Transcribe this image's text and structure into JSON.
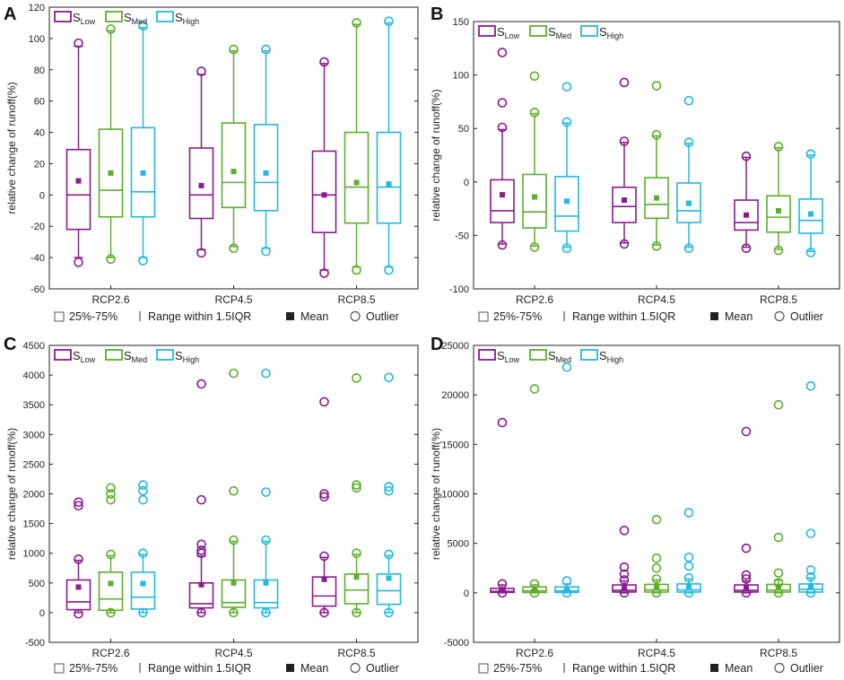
{
  "series_colors": {
    "low": "#8B1A8E",
    "med": "#5DAE2B",
    "high": "#22B9E2"
  },
  "legend": {
    "items": [
      {
        "key": "low",
        "base": "S",
        "sub": "Low"
      },
      {
        "key": "med",
        "base": "S",
        "sub": "Med"
      },
      {
        "key": "high",
        "base": "S",
        "sub": "High"
      }
    ]
  },
  "footer": {
    "box_label": "25%-75%",
    "range_label": "Range within 1.5IQR",
    "mean_label": "Mean",
    "outlier_label": "Outlier"
  },
  "chart_data": [
    {
      "panel": "A",
      "type": "box",
      "ylabel": "relative change of runoff(%)",
      "ylim": [
        -60,
        120
      ],
      "yticks": [
        -60,
        -40,
        -20,
        0,
        20,
        40,
        60,
        80,
        100,
        120
      ],
      "categories": [
        "RCP2.6",
        "RCP4.5",
        "RCP8.5"
      ],
      "series": [
        {
          "name": "S_Low",
          "key": "low",
          "boxes": [
            {
              "min": -40,
              "q1": -22,
              "median": 0,
              "q3": 29,
              "max": 95,
              "mean": 9,
              "outliers": [
                -43,
                97
              ]
            },
            {
              "min": -35,
              "q1": -15,
              "median": 0,
              "q3": 30,
              "max": 77,
              "mean": 6,
              "outliers": [
                -37,
                79
              ]
            },
            {
              "min": -48,
              "q1": -24,
              "median": 0,
              "q3": 28,
              "max": 84,
              "mean": 0,
              "outliers": [
                -50,
                85
              ]
            }
          ]
        },
        {
          "name": "S_Med",
          "key": "med",
          "boxes": [
            {
              "min": -40,
              "q1": -14,
              "median": 3,
              "q3": 42,
              "max": 105,
              "mean": 14,
              "outliers": [
                -41,
                106
              ]
            },
            {
              "min": -33,
              "q1": -8,
              "median": 8,
              "q3": 46,
              "max": 92,
              "mean": 15,
              "outliers": [
                -34,
                93
              ]
            },
            {
              "min": -46,
              "q1": -18,
              "median": 5,
              "q3": 40,
              "max": 109,
              "mean": 8,
              "outliers": [
                -48,
                110
              ]
            }
          ]
        },
        {
          "name": "S_High",
          "key": "high",
          "boxes": [
            {
              "min": -40,
              "q1": -14,
              "median": 2,
              "q3": 43,
              "max": 107,
              "mean": 14,
              "outliers": [
                -42,
                108
              ]
            },
            {
              "min": -34,
              "q1": -10,
              "median": 8,
              "q3": 45,
              "max": 92,
              "mean": 14,
              "outliers": [
                -36,
                93
              ]
            },
            {
              "min": -46,
              "q1": -18,
              "median": 5,
              "q3": 40,
              "max": 110,
              "mean": 7,
              "outliers": [
                -48,
                111
              ]
            }
          ]
        }
      ]
    },
    {
      "panel": "B",
      "type": "box",
      "ylabel": "relative change of runoff(%)",
      "ylim": [
        -100,
        150
      ],
      "yticks": [
        -100,
        -50,
        0,
        50,
        100,
        150
      ],
      "categories": [
        "RCP2.6",
        "RCP4.5",
        "RCP8.5"
      ],
      "series": [
        {
          "name": "S_Low",
          "key": "low",
          "boxes": [
            {
              "min": -58,
              "q1": -38,
              "median": -27,
              "q3": 2,
              "max": 49,
              "mean": -12,
              "outliers": [
                -59,
                51,
                74,
                121
              ]
            },
            {
              "min": -57,
              "q1": -38,
              "median": -23,
              "q3": -5,
              "max": 37,
              "mean": -17,
              "outliers": [
                -58,
                38,
                93
              ]
            },
            {
              "min": -61,
              "q1": -45,
              "median": -38,
              "q3": -17,
              "max": 23,
              "mean": -31,
              "outliers": [
                -62,
                24
              ]
            }
          ]
        },
        {
          "name": "S_Med",
          "key": "med",
          "boxes": [
            {
              "min": -60,
              "q1": -43,
              "median": -28,
              "q3": 7,
              "max": 64,
              "mean": -14,
              "outliers": [
                -61,
                65,
                99
              ]
            },
            {
              "min": -59,
              "q1": -34,
              "median": -21,
              "q3": 4,
              "max": 43,
              "mean": -15,
              "outliers": [
                -60,
                44,
                90
              ]
            },
            {
              "min": -63,
              "q1": -47,
              "median": -33,
              "q3": -13,
              "max": 32,
              "mean": -27,
              "outliers": [
                -64,
                33
              ]
            }
          ]
        },
        {
          "name": "S_High",
          "key": "high",
          "boxes": [
            {
              "min": -61,
              "q1": -46,
              "median": -32,
              "q3": 5,
              "max": 55,
              "mean": -18,
              "outliers": [
                -62,
                56,
                89
              ]
            },
            {
              "min": -61,
              "q1": -38,
              "median": -27,
              "q3": -1,
              "max": 36,
              "mean": -20,
              "outliers": [
                -62,
                37,
                76
              ]
            },
            {
              "min": -65,
              "q1": -48,
              "median": -36,
              "q3": -16,
              "max": 25,
              "mean": -30,
              "outliers": [
                -66,
                26
              ]
            }
          ]
        }
      ]
    },
    {
      "panel": "C",
      "type": "box",
      "ylabel": "relative change of runoff(%)",
      "ylim": [
        -500,
        4500
      ],
      "yticks": [
        -500,
        0,
        500,
        1000,
        1500,
        2000,
        2500,
        3000,
        3500,
        4000,
        4500
      ],
      "categories": [
        "RCP2.6",
        "RCP4.5",
        "RCP8.5"
      ],
      "series": [
        {
          "name": "S_Low",
          "key": "low",
          "boxes": [
            {
              "min": 0,
              "q1": 50,
              "median": 180,
              "q3": 550,
              "max": 880,
              "mean": 430,
              "outliers": [
                -20,
                900,
                1800,
                1860
              ]
            },
            {
              "min": 0,
              "q1": 80,
              "median": 150,
              "q3": 500,
              "max": 950,
              "mean": 470,
              "outliers": [
                0,
                1000,
                1050,
                1150,
                1900,
                3850
              ]
            },
            {
              "min": 0,
              "q1": 110,
              "median": 280,
              "q3": 600,
              "max": 930,
              "mean": 560,
              "outliers": [
                0,
                950,
                1950,
                2000,
                3550
              ]
            }
          ]
        },
        {
          "name": "S_Med",
          "key": "med",
          "boxes": [
            {
              "min": 0,
              "q1": 40,
              "median": 230,
              "q3": 680,
              "max": 960,
              "mean": 490,
              "outliers": [
                0,
                980,
                1900,
                2000,
                2100
              ]
            },
            {
              "min": 0,
              "q1": 90,
              "median": 170,
              "q3": 550,
              "max": 1200,
              "mean": 500,
              "outliers": [
                0,
                1220,
                2050,
                4030
              ]
            },
            {
              "min": 0,
              "q1": 150,
              "median": 380,
              "q3": 650,
              "max": 980,
              "mean": 600,
              "outliers": [
                0,
                1000,
                2100,
                2150,
                3950
              ]
            }
          ]
        },
        {
          "name": "S_High",
          "key": "high",
          "boxes": [
            {
              "min": 0,
              "q1": 60,
              "median": 260,
              "q3": 680,
              "max": 980,
              "mean": 490,
              "outliers": [
                0,
                1000,
                1900,
                2050,
                2150
              ]
            },
            {
              "min": 0,
              "q1": 80,
              "median": 170,
              "q3": 550,
              "max": 1200,
              "mean": 500,
              "outliers": [
                0,
                1220,
                2030,
                4030
              ]
            },
            {
              "min": 0,
              "q1": 140,
              "median": 370,
              "q3": 650,
              "max": 960,
              "mean": 580,
              "outliers": [
                0,
                980,
                2050,
                2120,
                3960
              ]
            }
          ]
        }
      ]
    },
    {
      "panel": "D",
      "type": "box",
      "ylabel": "relative change of runoff(%)",
      "ylim": [
        -5000,
        25000
      ],
      "yticks": [
        -5000,
        0,
        5000,
        10000,
        15000,
        20000,
        25000
      ],
      "categories": [
        "RCP2.6",
        "RCP4.5",
        "RCP8.5"
      ],
      "series": [
        {
          "name": "S_Low",
          "key": "low",
          "boxes": [
            {
              "min": 0,
              "q1": 50,
              "median": 150,
              "q3": 450,
              "max": 800,
              "mean": 300,
              "outliers": [
                0,
                900,
                17200
              ]
            },
            {
              "min": 0,
              "q1": 80,
              "median": 250,
              "q3": 800,
              "max": 1200,
              "mean": 500,
              "outliers": [
                0,
                1300,
                1900,
                2600,
                6300
              ]
            },
            {
              "min": 0,
              "q1": 80,
              "median": 250,
              "q3": 800,
              "max": 1200,
              "mean": 500,
              "outliers": [
                0,
                1400,
                1800,
                4500,
                16300
              ]
            }
          ]
        },
        {
          "name": "S_Med",
          "key": "med",
          "boxes": [
            {
              "min": 0,
              "q1": 40,
              "median": 200,
              "q3": 600,
              "max": 800,
              "mean": 350,
              "outliers": [
                0,
                900,
                20600
              ]
            },
            {
              "min": 0,
              "q1": 80,
              "median": 300,
              "q3": 850,
              "max": 1300,
              "mean": 550,
              "outliers": [
                0,
                1400,
                2500,
                3500,
                7400
              ]
            },
            {
              "min": 0,
              "q1": 80,
              "median": 280,
              "q3": 850,
              "max": 1300,
              "mean": 550,
              "outliers": [
                0,
                1000,
                2000,
                5600,
                19000
              ]
            }
          ]
        },
        {
          "name": "S_High",
          "key": "high",
          "boxes": [
            {
              "min": 0,
              "q1": 50,
              "median": 200,
              "q3": 600,
              "max": 900,
              "mean": 350,
              "outliers": [
                0,
                1200,
                22800
              ]
            },
            {
              "min": 0,
              "q1": 80,
              "median": 300,
              "q3": 900,
              "max": 1400,
              "mean": 600,
              "outliers": [
                0,
                1500,
                2700,
                3600,
                8100
              ]
            },
            {
              "min": 0,
              "q1": 80,
              "median": 350,
              "q3": 900,
              "max": 1500,
              "mean": 650,
              "outliers": [
                0,
                1600,
                2300,
                6000,
                20900
              ]
            }
          ]
        }
      ]
    }
  ]
}
